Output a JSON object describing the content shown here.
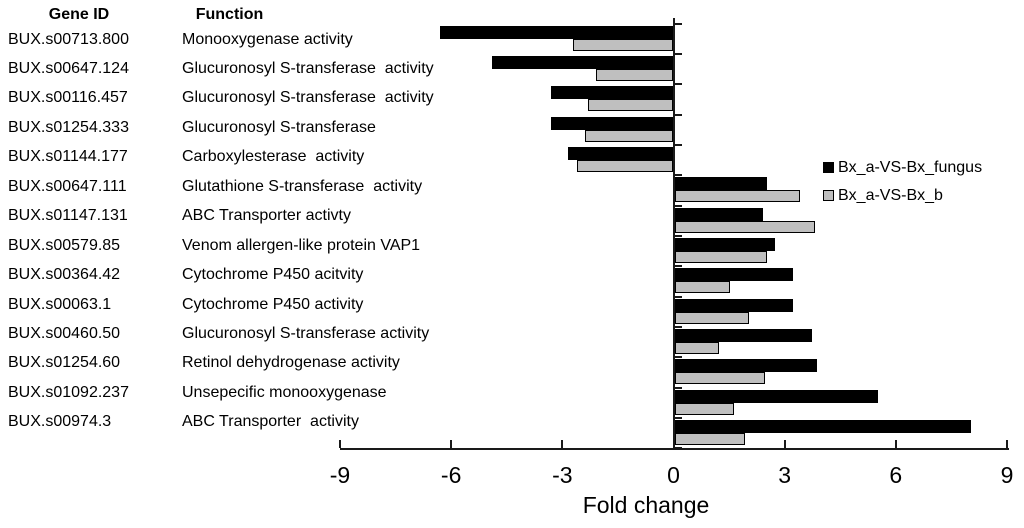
{
  "table_headers": {
    "gene_id": "Gene ID",
    "function": "Function"
  },
  "legend": [
    {
      "label": "Bx_a-VS-Bx_fungus",
      "color": "#000000",
      "outlined": false
    },
    {
      "label": "Bx_a-VS-Bx_b",
      "color": "#bfbfbf",
      "outlined": true
    }
  ],
  "chart_data": {
    "type": "bar",
    "orientation": "horizontal",
    "xlabel": "Fold change",
    "xlim": [
      -9,
      9
    ],
    "xticks": [
      "-9",
      "-6",
      "-3",
      "0",
      "3",
      "6",
      "9"
    ],
    "xtick_values": [
      -9,
      -6,
      -3,
      0,
      3,
      6,
      9
    ],
    "grid": false,
    "legend_position": "middle-right",
    "series": [
      {
        "name": "Bx_a-VS-Bx_fungus",
        "color": "#000000"
      },
      {
        "name": "Bx_a-VS-Bx_b",
        "color": "#bfbfbf"
      }
    ],
    "rows": [
      {
        "gene_id": "BUX.s00713.800",
        "function": "Monooxygenase activity",
        "fungus": -6.3,
        "b": -2.7
      },
      {
        "gene_id": "BUX.s00647.124",
        "function": "Glucuronosyl S-transferase  activity",
        "fungus": -4.9,
        "b": -2.1
      },
      {
        "gene_id": "BUX.s00116.457",
        "function": "Glucuronosyl S-transferase  activity",
        "fungus": -3.3,
        "b": -2.3
      },
      {
        "gene_id": "BUX.s01254.333",
        "function": "Glucuronosyl S-transferase",
        "fungus": -3.3,
        "b": -2.4
      },
      {
        "gene_id": "BUX.s01144.177",
        "function": "Carboxylesterase  activity",
        "fungus": -2.85,
        "b": -2.6
      },
      {
        "gene_id": "BUX.s00647.111",
        "function": "Glutathione S-transferase  activity",
        "fungus": 2.5,
        "b": 3.4
      },
      {
        "gene_id": "BUX.s01147.131",
        "function": "ABC Transporter activty",
        "fungus": 2.4,
        "b": 3.8
      },
      {
        "gene_id": "BUX.s00579.85",
        "function": "Venom allergen-like protein VAP1",
        "fungus": 2.7,
        "b": 2.5
      },
      {
        "gene_id": "BUX.s00364.42",
        "function": "Cytochrome P450 acitvity",
        "fungus": 3.2,
        "b": 1.5
      },
      {
        "gene_id": "BUX.s00063.1",
        "function": "Cytochrome P450 activity",
        "fungus": 3.2,
        "b": 2.0
      },
      {
        "gene_id": "BUX.s00460.50",
        "function": "Glucuronosyl S-transferase activity",
        "fungus": 3.7,
        "b": 1.2
      },
      {
        "gene_id": "BUX.s01254.60",
        "function": "Retinol dehydrogenase activity",
        "fungus": 3.85,
        "b": 2.45
      },
      {
        "gene_id": "BUX.s01092.237",
        "function": "Unsepecific monooxygenase",
        "fungus": 5.5,
        "b": 1.6
      },
      {
        "gene_id": "BUX.s00974.3",
        "function": "ABC Transporter  activity",
        "fungus": 8.0,
        "b": 1.9
      }
    ]
  }
}
